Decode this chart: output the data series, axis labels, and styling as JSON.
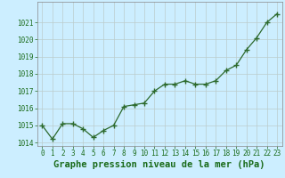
{
  "x": [
    0,
    1,
    2,
    3,
    4,
    5,
    6,
    7,
    8,
    9,
    10,
    11,
    12,
    13,
    14,
    15,
    16,
    17,
    18,
    19,
    20,
    21,
    22,
    23
  ],
  "y": [
    1015.0,
    1014.2,
    1015.1,
    1015.1,
    1014.8,
    1014.3,
    1014.7,
    1015.0,
    1016.1,
    1016.2,
    1016.3,
    1017.0,
    1017.4,
    1017.4,
    1017.6,
    1017.4,
    1017.4,
    1017.6,
    1018.2,
    1018.5,
    1019.4,
    1020.1,
    1021.0,
    1021.5
  ],
  "line_color": "#2d6a2d",
  "marker": "+",
  "marker_size": 4,
  "marker_linewidth": 1.0,
  "linewidth": 0.9,
  "bg_color": "#cceeff",
  "grid_color": "#bbcccc",
  "xlabel": "Graphe pression niveau de la mer (hPa)",
  "xlabel_fontsize": 7.5,
  "xlabel_color": "#1a6b1a",
  "ylim": [
    1013.8,
    1022.2
  ],
  "yticks": [
    1014,
    1015,
    1016,
    1017,
    1018,
    1019,
    1020,
    1021
  ],
  "xticks": [
    0,
    1,
    2,
    3,
    4,
    5,
    6,
    7,
    8,
    9,
    10,
    11,
    12,
    13,
    14,
    15,
    16,
    17,
    18,
    19,
    20,
    21,
    22,
    23
  ],
  "tick_fontsize": 5.5,
  "tick_color": "#1a6b1a",
  "xlim": [
    -0.5,
    23.5
  ]
}
